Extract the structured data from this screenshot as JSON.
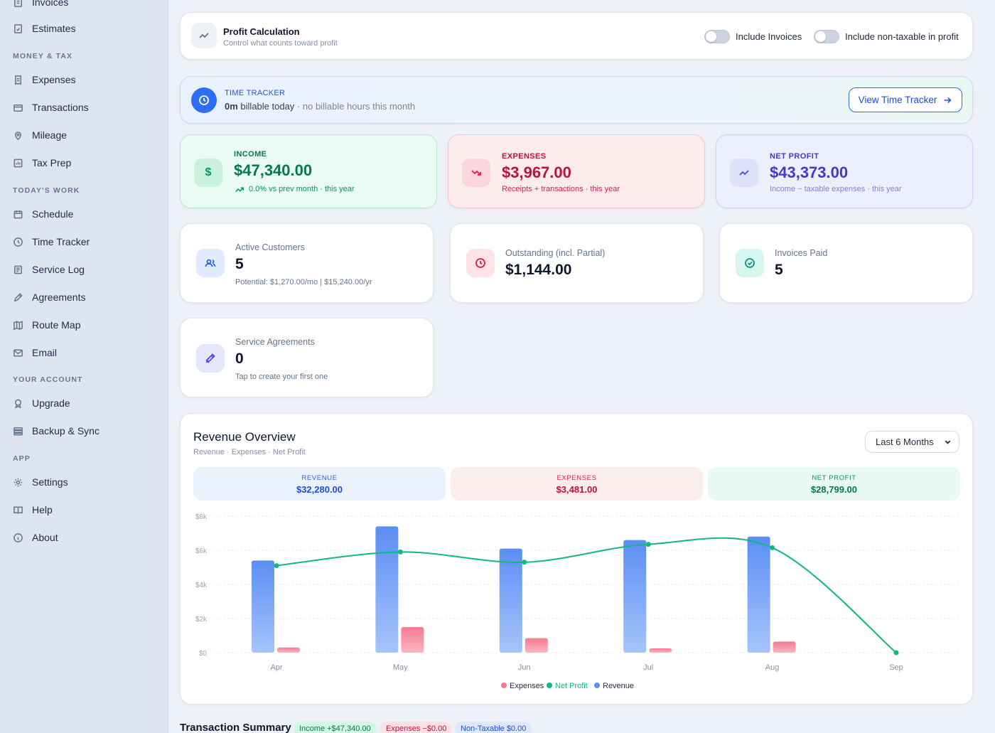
{
  "sidebar": {
    "items": [
      {
        "label": "Invoices",
        "icon": "invoice-icon"
      },
      {
        "label": "Estimates",
        "icon": "estimate-icon"
      },
      {
        "label": "Expenses",
        "icon": "receipt-icon"
      },
      {
        "label": "Transactions",
        "icon": "card-icon"
      },
      {
        "label": "Mileage",
        "icon": "pin-icon"
      },
      {
        "label": "Tax Prep",
        "icon": "tax-icon"
      },
      {
        "label": "Schedule",
        "icon": "calendar-icon"
      },
      {
        "label": "Time Tracker",
        "icon": "clock-icon"
      },
      {
        "label": "Service Log",
        "icon": "log-icon"
      },
      {
        "label": "Agreements",
        "icon": "pen-icon"
      },
      {
        "label": "Route Map",
        "icon": "map-icon"
      },
      {
        "label": "Email",
        "icon": "mail-icon"
      },
      {
        "label": "Upgrade",
        "icon": "badge-icon"
      },
      {
        "label": "Backup & Sync",
        "icon": "database-icon"
      },
      {
        "label": "Settings",
        "icon": "gear-icon"
      },
      {
        "label": "Help",
        "icon": "book-icon"
      },
      {
        "label": "About",
        "icon": "info-icon"
      }
    ],
    "sections": {
      "money_tax": "MONEY & TAX",
      "todays_work": "TODAY'S WORK",
      "your_account": "YOUR ACCOUNT",
      "app": "APP"
    }
  },
  "profit_calc": {
    "title": "Profit Calculation",
    "subtitle": "Control what counts toward profit",
    "toggle_invoices": "Include Invoices",
    "toggle_non_taxable": "Include non-taxable in profit",
    "toggle_invoices_on": false,
    "toggle_non_taxable_on": false
  },
  "time_tracker": {
    "label": "TIME TRACKER",
    "hours": "0m",
    "billable_text": "billable today",
    "note": "· no billable hours this month",
    "button": "View Time Tracker"
  },
  "stats": {
    "income": {
      "label": "INCOME",
      "value": "$47,340.00",
      "sub": "0.0% vs prev month · this year"
    },
    "expenses": {
      "label": "EXPENSES",
      "value": "$3,967.00",
      "sub": "Receipts + transactions · this year"
    },
    "net_profit": {
      "label": "NET PROFIT",
      "value": "$43,373.00",
      "sub": "Income − taxable expenses · this year"
    }
  },
  "metrics": {
    "active_customers": {
      "label": "Active Customers",
      "value": "5",
      "sub": "Potential: $1,270.00/mo | $15,240.00/yr"
    },
    "outstanding": {
      "label": "Outstanding (incl. Partial)",
      "value": "$1,144.00"
    },
    "invoices_paid": {
      "label": "Invoices Paid",
      "value": "5"
    },
    "service_agreements": {
      "label": "Service Agreements",
      "value": "0",
      "sub": "Tap to create your first one"
    }
  },
  "revenue_overview": {
    "title": "Revenue Overview",
    "subtitle": "Revenue · Expenses · Net Profit",
    "range": "Last 6 Months",
    "revenue_label": "REVENUE",
    "revenue_value": "$32,280.00",
    "expenses_label": "EXPENSES",
    "expenses_value": "$3,481.00",
    "net_label": "NET PROFIT",
    "net_value": "$28,799.00"
  },
  "chart_data": {
    "type": "bar",
    "categories": [
      "Apr",
      "May",
      "Jun",
      "Jul",
      "Aug",
      "Sep"
    ],
    "y_ticks": [
      "$0",
      "$2k",
      "$4k",
      "$6k",
      "$8k"
    ],
    "ylim": [
      0,
      8000
    ],
    "grid": true,
    "legend_position": "bottom",
    "series": [
      {
        "name": "Revenue",
        "type": "bar",
        "color": "#5b8ef4",
        "values": [
          5400,
          7400,
          6100,
          6600,
          6800,
          0
        ]
      },
      {
        "name": "Expenses",
        "type": "bar",
        "color": "#f47a8f",
        "values": [
          300,
          1500,
          850,
          250,
          650,
          0
        ]
      },
      {
        "name": "Net Profit",
        "type": "line",
        "color": "#10b981",
        "values": [
          5100,
          5900,
          5300,
          6350,
          6150,
          0
        ]
      }
    ],
    "legend": [
      "Expenses",
      "Net Profit",
      "Revenue"
    ]
  },
  "transaction_summary": {
    "title": "Transaction Summary",
    "income_tag": "Income +$47,340.00",
    "expenses_tag": "Expenses −$0.00",
    "non_taxable_tag": "Non-Taxable $0.00"
  }
}
